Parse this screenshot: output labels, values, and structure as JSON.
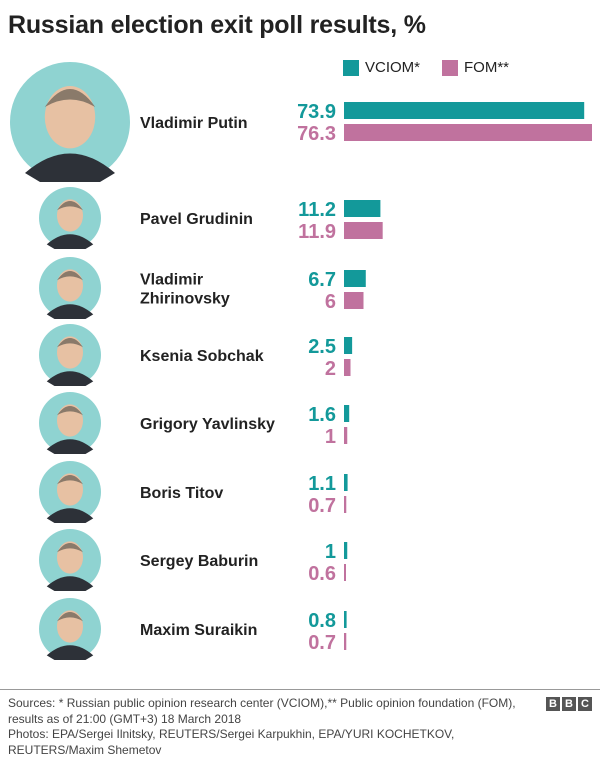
{
  "title": "Russian election exit poll results, %",
  "legend": [
    {
      "label": "VCIOM*",
      "color": "#13999a"
    },
    {
      "label": "FOM**",
      "color": "#c0729e"
    }
  ],
  "chart_data": {
    "type": "bar",
    "orientation": "horizontal",
    "title": "Russian election exit poll results, %",
    "categories": [
      "Vladimir Putin",
      "Pavel Grudinin",
      "Vladimir Zhirinovsky",
      "Ksenia Sobchak",
      "Grigory Yavlinsky",
      "Boris Titov",
      "Sergey Baburin",
      "Maxim Suraikin"
    ],
    "category_lines": [
      [
        "Vladimir Putin"
      ],
      [
        "Pavel Grudinin"
      ],
      [
        "Vladimir",
        "Zhirinovsky"
      ],
      [
        "Ksenia Sobchak"
      ],
      [
        "Grigory Yavlinsky"
      ],
      [
        "Boris Titov"
      ],
      [
        "Sergey Baburin"
      ],
      [
        "Maxim Suraikin"
      ]
    ],
    "series": [
      {
        "name": "VCIOM*",
        "color": "#13999a",
        "values": [
          73.9,
          11.2,
          6.7,
          2.5,
          1.6,
          1.1,
          1,
          0.8
        ],
        "labels": [
          "73.9",
          "11.2",
          "6.7",
          "2.5",
          "1.6",
          "1.1",
          "1",
          "0.8"
        ]
      },
      {
        "name": "FOM**",
        "color": "#c0729e",
        "values": [
          76.3,
          11.9,
          6,
          2,
          1,
          0.7,
          0.6,
          0.7
        ],
        "labels": [
          "76.3",
          "11.9",
          "6",
          "2",
          "1",
          "0.7",
          "0.6",
          "0.7"
        ]
      }
    ],
    "xlim": [
      0,
      76.3
    ],
    "grid": false,
    "legend_position": "top-right"
  },
  "footer": {
    "sources": "Sources: * Russian public opinion research center (VCIOM),** Public opinion foundation (FOM), results as of 21:00 (GMT+3) 18 March 2018",
    "photos": "Photos: EPA/Sergei Ilnitsky, REUTERS/Sergei Karpukhin, EPA/YURI KOCHETKOV, REUTERS/Maxim Shemetov"
  },
  "logo": [
    "B",
    "B",
    "C"
  ]
}
